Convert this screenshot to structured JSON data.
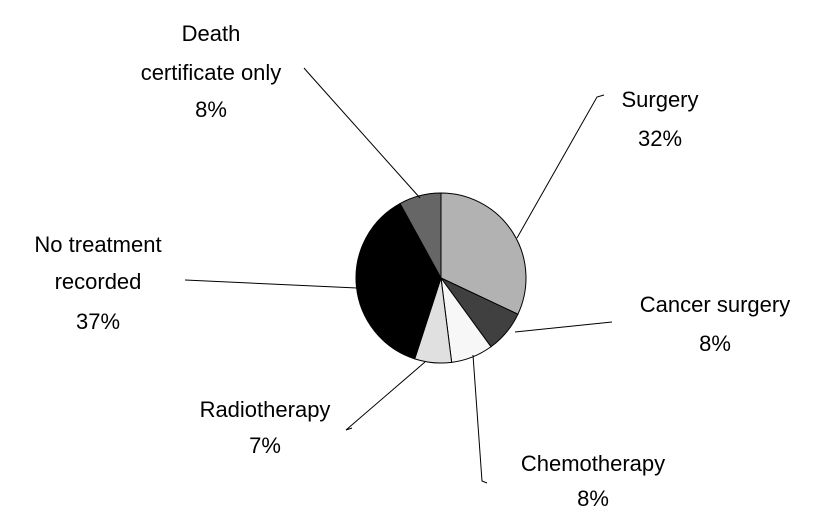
{
  "chart_data": {
    "type": "pie",
    "categories": [
      "Surgery",
      "Cancer surgery",
      "Chemotherapy",
      "Radiotherapy",
      "No treatment recorded",
      "Death certificate only"
    ],
    "values": [
      32,
      8,
      8,
      7,
      37,
      8
    ],
    "value_labels": [
      "32%",
      "8%",
      "8%",
      "7%",
      "37%",
      "8%"
    ],
    "colors": [
      "#b2b2b2",
      "#404040",
      "#f7f7f7",
      "#e0e0e0",
      "#000000",
      "#666666"
    ]
  }
}
